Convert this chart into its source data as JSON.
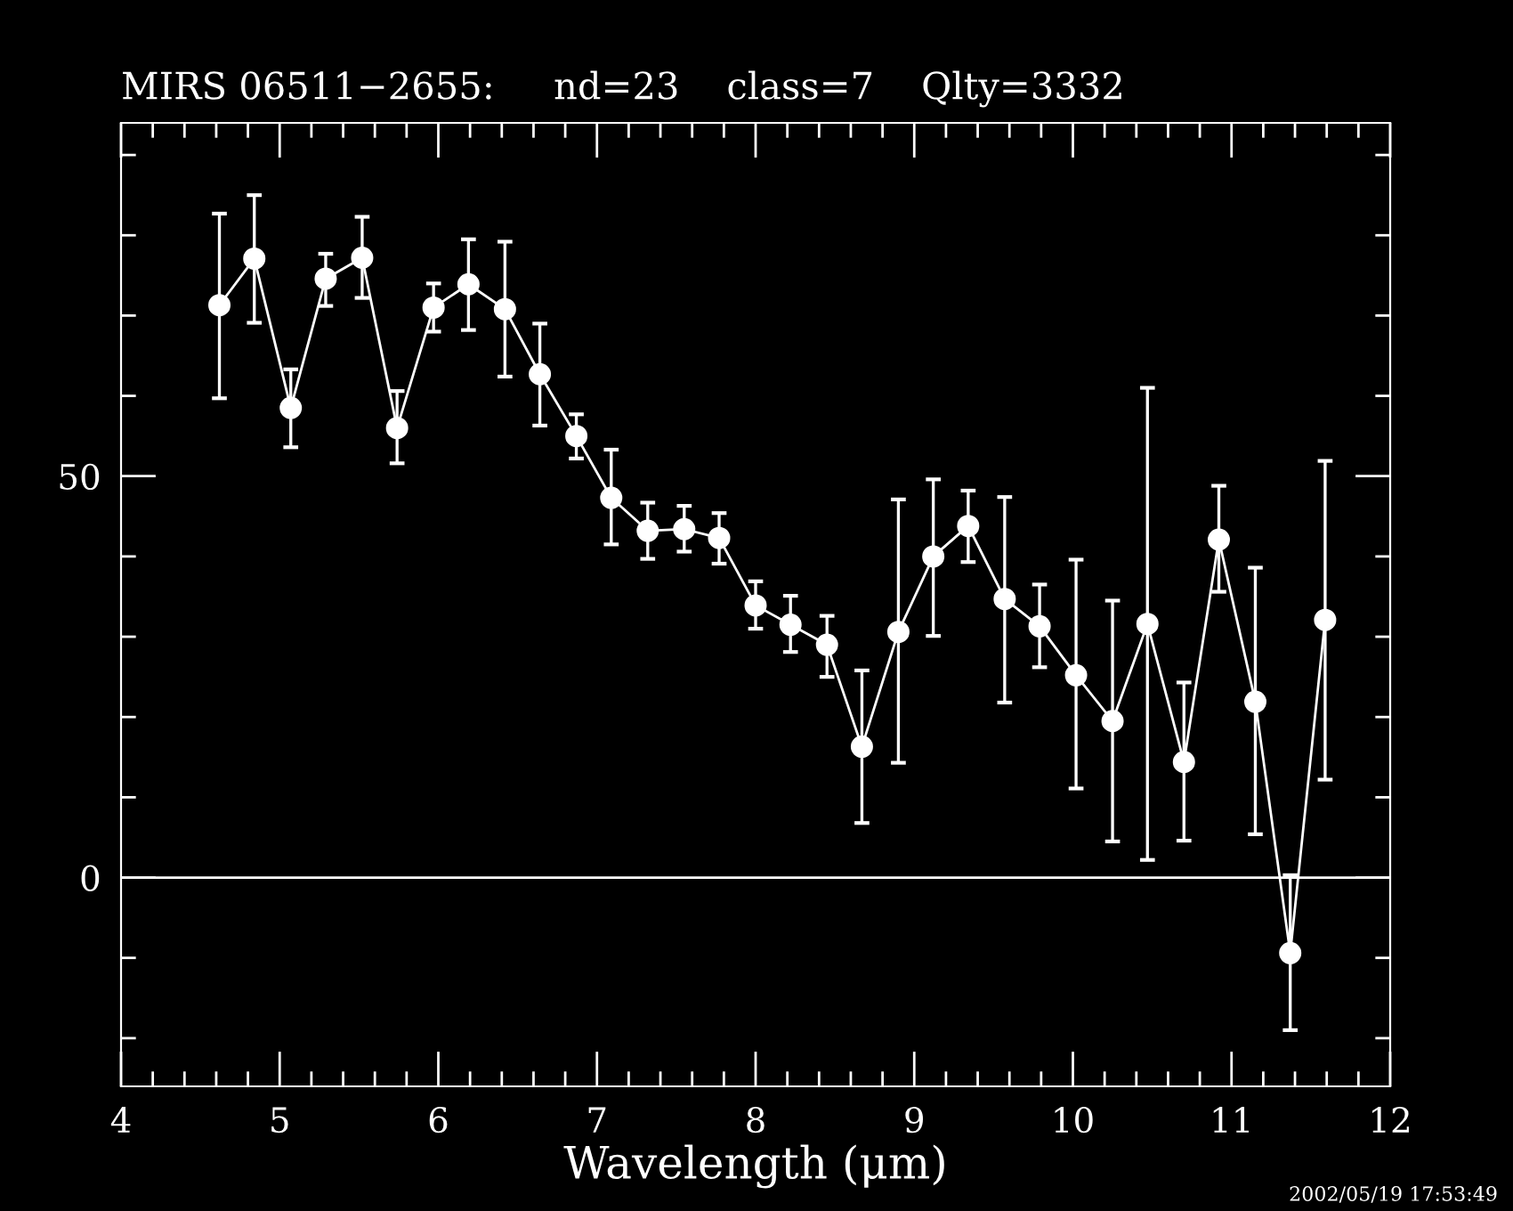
{
  "chart_data": {
    "type": "line",
    "title": "MIRS 06511−2655:     nd=23    class=7    Qlty=3332",
    "xlabel": "Wavelength (μm)",
    "x": [
      4.62,
      4.84,
      5.07,
      5.29,
      5.52,
      5.74,
      5.97,
      6.19,
      6.42,
      6.64,
      6.87,
      7.09,
      7.32,
      7.55,
      7.77,
      8.0,
      8.22,
      8.45,
      8.67,
      8.9,
      9.12,
      9.34,
      9.57,
      9.79,
      10.02,
      10.25,
      10.47,
      10.7,
      10.92,
      11.15,
      11.37,
      11.59
    ],
    "series": [
      {
        "color": "#ffffff",
        "values": [
          71.3,
          77.1,
          58.5,
          74.6,
          77.2,
          56.0,
          71.0,
          73.9,
          70.8,
          62.7,
          55.0,
          47.3,
          43.2,
          43.4,
          42.3,
          33.9,
          31.5,
          29.0,
          16.3,
          30.6,
          40.0,
          43.8,
          34.7,
          31.3,
          25.2,
          19.5,
          31.6,
          14.4,
          42.1,
          21.9,
          -9.4,
          32.1
        ],
        "errors": [
          [
            59.7,
            82.7
          ],
          [
            69.1,
            85.0
          ],
          [
            53.6,
            63.3
          ],
          [
            71.2,
            77.7
          ],
          [
            72.2,
            82.3
          ],
          [
            51.6,
            60.6
          ],
          [
            68.0,
            74.0
          ],
          [
            68.2,
            79.5
          ],
          [
            62.4,
            79.2
          ],
          [
            56.3,
            69.0
          ],
          [
            52.2,
            57.7
          ],
          [
            41.5,
            53.3
          ],
          [
            39.7,
            46.7
          ],
          [
            40.6,
            46.3
          ],
          [
            39.1,
            45.4
          ],
          [
            31.0,
            36.9
          ],
          [
            28.1,
            35.1
          ],
          [
            25.0,
            32.6
          ],
          [
            6.8,
            25.8
          ],
          [
            14.3,
            47.1
          ],
          [
            30.1,
            49.6
          ],
          [
            39.3,
            48.2
          ],
          [
            21.8,
            47.4
          ],
          [
            26.2,
            36.5
          ],
          [
            11.1,
            39.6
          ],
          [
            4.5,
            34.5
          ],
          [
            2.2,
            61.0
          ],
          [
            4.6,
            24.3
          ],
          [
            35.6,
            48.8
          ],
          [
            5.4,
            38.6
          ],
          [
            -19.0,
            0.3
          ],
          [
            12.2,
            51.9
          ]
        ]
      }
    ],
    "marker": "circle",
    "line_style": "solid",
    "grid": false,
    "legend": false,
    "xlim": [
      4,
      12
    ],
    "xticks": [
      4,
      5,
      6,
      7,
      8,
      9,
      10,
      11,
      12
    ],
    "ylim": [
      -26,
      94
    ],
    "yticks": [
      {
        "value": -20,
        "label": null
      },
      {
        "value": -10,
        "label": null
      },
      0,
      {
        "value": 10,
        "label": null
      },
      {
        "value": 20,
        "label": null
      },
      {
        "value": 30,
        "label": null
      },
      {
        "value": 40,
        "label": null
      },
      50,
      {
        "value": 60,
        "label": null
      },
      {
        "value": 70,
        "label": null
      },
      {
        "value": 80,
        "label": null
      },
      {
        "value": 90,
        "label": null
      }
    ],
    "ref_lines": [
      {
        "axis": "y",
        "value": 0,
        "color": "#ffffff",
        "line_style": "solid"
      }
    ],
    "annotations": [
      "2002/05/19 17:53:49"
    ]
  }
}
